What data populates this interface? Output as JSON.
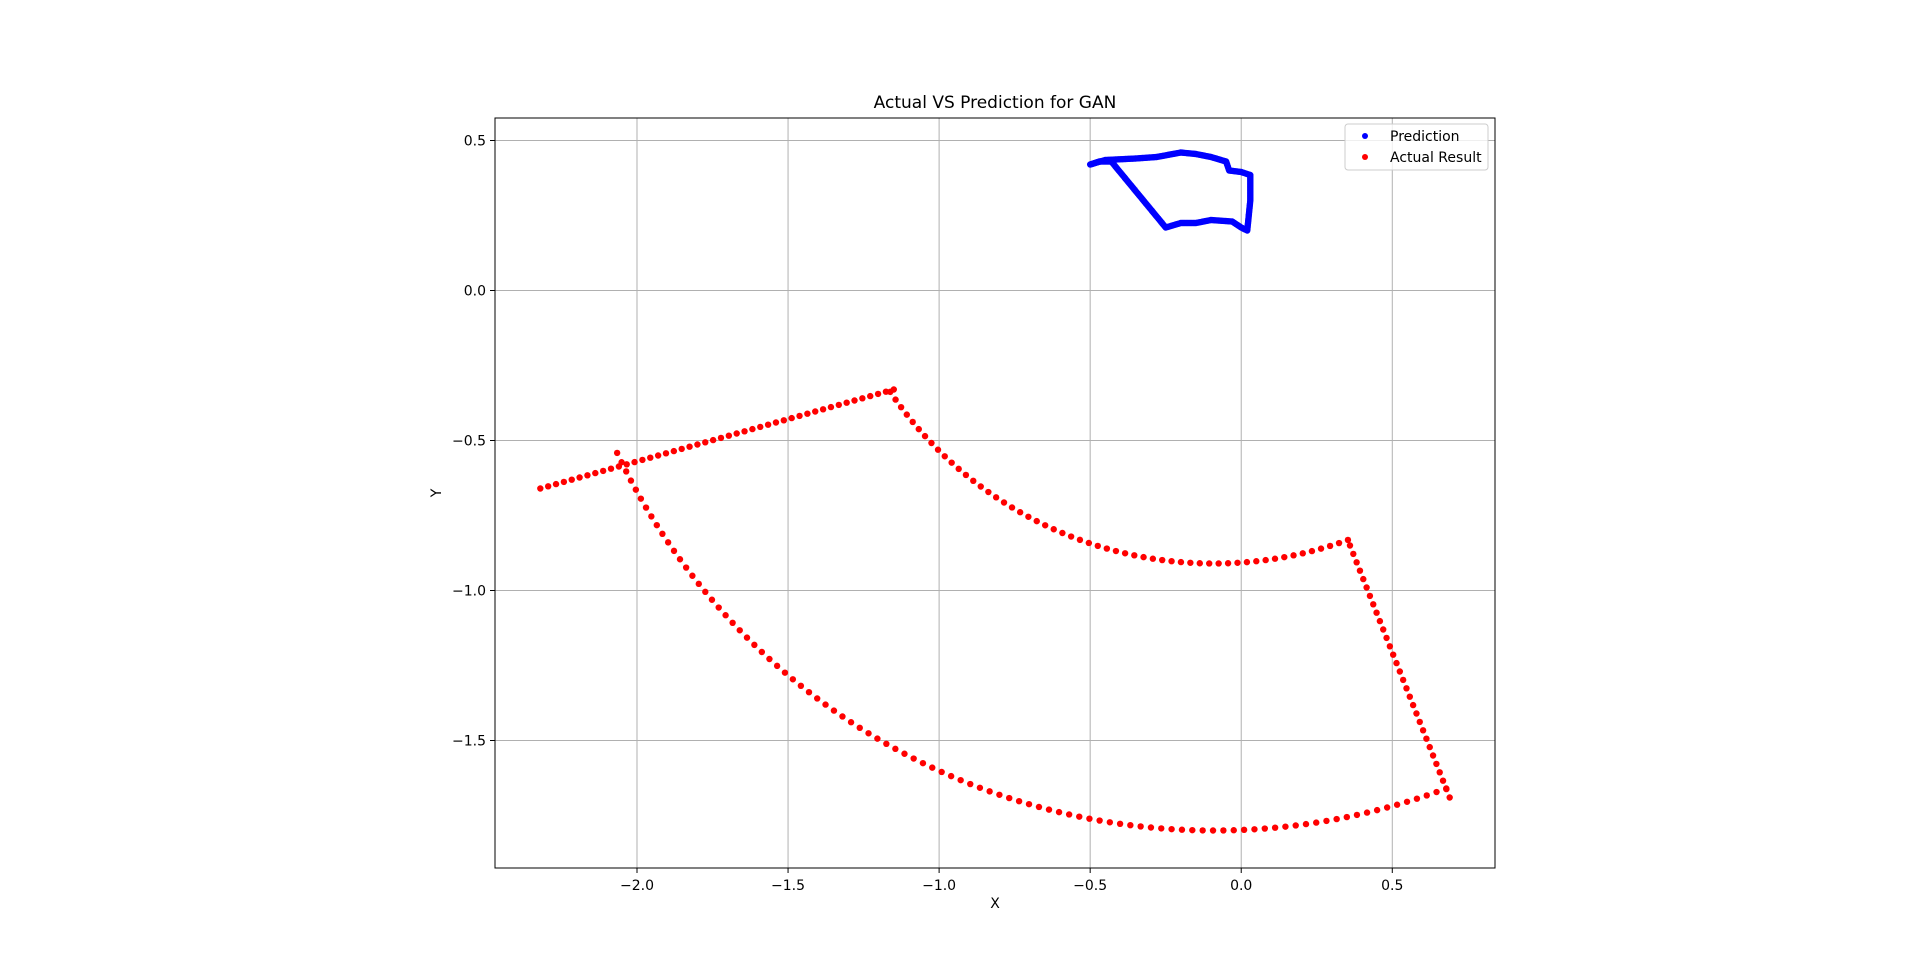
{
  "chart_data": {
    "type": "scatter",
    "title": "Actual VS Prediction for GAN",
    "xlabel": "X",
    "ylabel": "Y",
    "xlim": [
      -2.47,
      0.84
    ],
    "ylim": [
      -1.925,
      0.575
    ],
    "xticks": [
      -2.0,
      -1.5,
      -1.0,
      -0.5,
      0.0,
      0.5
    ],
    "xtick_labels": [
      "−2.0",
      "−1.5",
      "−1.0",
      "−0.5",
      "0.0",
      "0.5"
    ],
    "yticks": [
      0.5,
      0.0,
      -0.5,
      -1.0,
      -1.5
    ],
    "ytick_labels": [
      "0.5",
      "0.0",
      "−0.5",
      "−1.0",
      "−1.5"
    ],
    "grid": true,
    "legend_position": "top-right",
    "series": [
      {
        "name": "Prediction",
        "color": "#0000ff",
        "path": [
          [
            -0.5,
            0.42
          ],
          [
            -0.45,
            0.435
          ],
          [
            -0.35,
            0.44
          ],
          [
            -0.28,
            0.445
          ],
          [
            -0.2,
            0.46
          ],
          [
            -0.15,
            0.455
          ],
          [
            -0.1,
            0.445
          ],
          [
            -0.05,
            0.43
          ],
          [
            -0.04,
            0.4
          ],
          [
            0.0,
            0.395
          ],
          [
            0.03,
            0.385
          ],
          [
            0.03,
            0.3
          ],
          [
            0.025,
            0.25
          ],
          [
            0.02,
            0.2
          ],
          [
            0.0,
            0.21
          ],
          [
            -0.03,
            0.23
          ],
          [
            -0.1,
            0.235
          ],
          [
            -0.15,
            0.225
          ],
          [
            -0.2,
            0.225
          ],
          [
            -0.25,
            0.21
          ],
          [
            -0.43,
            0.43
          ],
          [
            -0.47,
            0.43
          ],
          [
            -0.5,
            0.42
          ]
        ]
      },
      {
        "name": "Actual Result",
        "color": "#ff0000",
        "shape": {
          "center": [
            -0.09,
            0.38
          ],
          "inner_radius": 1.29,
          "outer_radius": 2.18,
          "start_point": [
            -1.15,
            -0.33
          ],
          "inner_end_point": [
            0.36,
            -0.85
          ],
          "outer_end_point": [
            0.69,
            -1.69
          ],
          "outer_start_point": [
            -2.32,
            -0.66
          ]
        }
      }
    ]
  }
}
